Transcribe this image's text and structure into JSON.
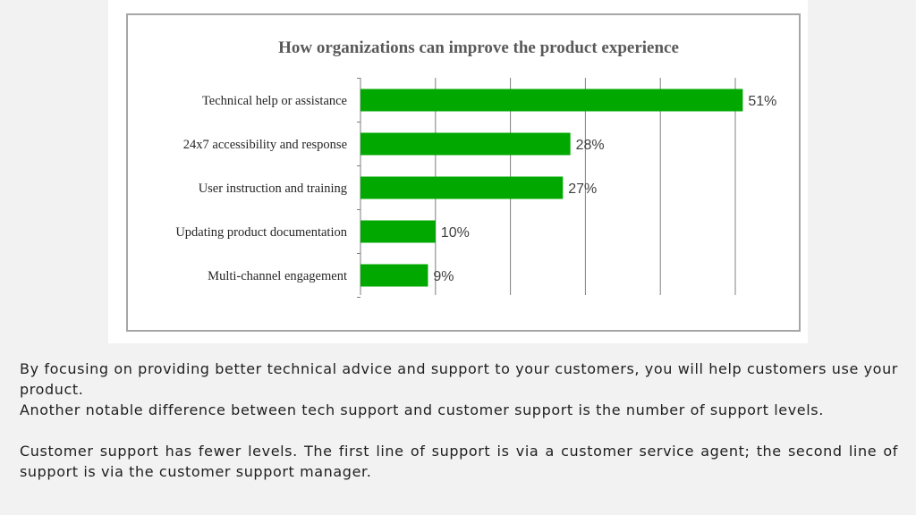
{
  "chart_data": {
    "type": "bar",
    "orientation": "horizontal",
    "title": "How organizations can improve the product experience",
    "categories": [
      "Technical help or assistance",
      "24x7 accessibility and response",
      "User instruction and training",
      "Updating product documentation",
      "Multi-channel engagement"
    ],
    "values": [
      51,
      28,
      27,
      10,
      9
    ],
    "value_labels": [
      "51%",
      "28%",
      "27%",
      "10%",
      "9%"
    ],
    "xlim": [
      0,
      60
    ],
    "grid": true,
    "legend": "none",
    "colors": {
      "bar": "#00a800",
      "grid": "#7f7f7f",
      "frame": "#a6a6a6"
    }
  },
  "text": {
    "paragraph1": "By focusing on providing better technical advice and support to your customers, you will help customers use your product.",
    "paragraph2": "Another notable difference between tech support and customer support is the number of support levels.",
    "paragraph3": "Customer support has fewer levels.  The first line of support is via a customer service agent; the second line of support is via the customer support manager."
  }
}
